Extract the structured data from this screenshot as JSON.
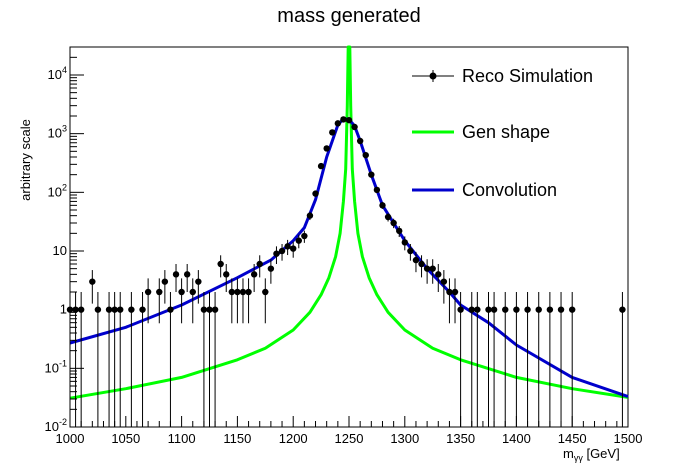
{
  "chart_data": {
    "type": "line",
    "title": "mass generated",
    "xlabel": "m_γγ [GeV]",
    "xlabel_main": "m",
    "xlabel_sub": "γγ",
    "xlabel_unit": " [GeV]",
    "ylabel": "arbitrary scale",
    "xlim": [
      1000,
      1500
    ],
    "ylim": [
      0.01,
      30000
    ],
    "y_scale": "log",
    "grid": false,
    "legend_position": "top-right",
    "x_ticks": [
      {
        "value": 1000,
        "label": "1000"
      },
      {
        "value": 1050,
        "label": "1050"
      },
      {
        "value": 1100,
        "label": "1100"
      },
      {
        "value": 1150,
        "label": "1150"
      },
      {
        "value": 1200,
        "label": "1200"
      },
      {
        "value": 1250,
        "label": "1250"
      },
      {
        "value": 1300,
        "label": "1300"
      },
      {
        "value": 1350,
        "label": "1350"
      },
      {
        "value": 1400,
        "label": "1400"
      },
      {
        "value": 1450,
        "label": "1450"
      },
      {
        "value": 1500,
        "label": "1500"
      }
    ],
    "y_ticks": [
      {
        "value": 0.01,
        "base": "10",
        "exp": "-2"
      },
      {
        "value": 0.1,
        "base": "10",
        "exp": "-1"
      },
      {
        "value": 1,
        "base": "1",
        "exp": ""
      },
      {
        "value": 10,
        "base": "10",
        "exp": ""
      },
      {
        "value": 100,
        "base": "10",
        "exp": "2"
      },
      {
        "value": 1000,
        "base": "10",
        "exp": "3"
      },
      {
        "value": 10000,
        "base": "10",
        "exp": "4"
      }
    ],
    "series": [
      {
        "name": "Reco Simulation",
        "kind": "points-with-errors",
        "color": "#000000",
        "points": [
          [
            1000,
            1
          ],
          [
            1005,
            1
          ],
          [
            1010,
            1
          ],
          [
            1020,
            3
          ],
          [
            1025,
            1
          ],
          [
            1035,
            1
          ],
          [
            1040,
            1
          ],
          [
            1045,
            1
          ],
          [
            1055,
            1
          ],
          [
            1065,
            1
          ],
          [
            1070,
            2
          ],
          [
            1080,
            2
          ],
          [
            1085,
            3
          ],
          [
            1090,
            1
          ],
          [
            1095,
            4
          ],
          [
            1100,
            2
          ],
          [
            1105,
            4
          ],
          [
            1110,
            2
          ],
          [
            1115,
            3
          ],
          [
            1120,
            1
          ],
          [
            1125,
            1
          ],
          [
            1130,
            1
          ],
          [
            1135,
            6
          ],
          [
            1140,
            4
          ],
          [
            1145,
            2
          ],
          [
            1150,
            2
          ],
          [
            1155,
            2
          ],
          [
            1160,
            2
          ],
          [
            1165,
            4
          ],
          [
            1170,
            6
          ],
          [
            1175,
            2
          ],
          [
            1180,
            5
          ],
          [
            1185,
            9
          ],
          [
            1190,
            10
          ],
          [
            1195,
            12
          ],
          [
            1200,
            11
          ],
          [
            1205,
            15
          ],
          [
            1210,
            18
          ],
          [
            1215,
            40
          ],
          [
            1220,
            95
          ],
          [
            1225,
            280
          ],
          [
            1230,
            560
          ],
          [
            1235,
            1050
          ],
          [
            1240,
            1500
          ],
          [
            1245,
            1750
          ],
          [
            1250,
            1700
          ],
          [
            1255,
            1300
          ],
          [
            1260,
            750
          ],
          [
            1265,
            430
          ],
          [
            1270,
            200
          ],
          [
            1275,
            110
          ],
          [
            1280,
            60
          ],
          [
            1285,
            38
          ],
          [
            1290,
            30
          ],
          [
            1295,
            22
          ],
          [
            1300,
            14
          ],
          [
            1305,
            10
          ],
          [
            1310,
            7
          ],
          [
            1315,
            6
          ],
          [
            1320,
            5
          ],
          [
            1325,
            5
          ],
          [
            1330,
            4
          ],
          [
            1335,
            3
          ],
          [
            1340,
            2
          ],
          [
            1345,
            2
          ],
          [
            1350,
            1
          ],
          [
            1360,
            1
          ],
          [
            1365,
            1
          ],
          [
            1375,
            1
          ],
          [
            1380,
            1
          ],
          [
            1390,
            1
          ],
          [
            1400,
            1
          ],
          [
            1410,
            1
          ],
          [
            1420,
            1
          ],
          [
            1430,
            1
          ],
          [
            1440,
            1
          ],
          [
            1450,
            1
          ],
          [
            1495,
            1
          ]
        ]
      },
      {
        "name": "Gen shape",
        "kind": "line",
        "color": "#00ff00",
        "points": [
          [
            1000,
            0.031
          ],
          [
            1050,
            0.045
          ],
          [
            1100,
            0.07
          ],
          [
            1150,
            0.14
          ],
          [
            1175,
            0.22
          ],
          [
            1200,
            0.45
          ],
          [
            1215,
            0.9
          ],
          [
            1225,
            1.8
          ],
          [
            1232,
            3.5
          ],
          [
            1238,
            8
          ],
          [
            1242,
            20
          ],
          [
            1245,
            70
          ],
          [
            1247,
            250
          ],
          [
            1248.5,
            3000
          ],
          [
            1249.3,
            40000
          ],
          [
            1250.7,
            40000
          ],
          [
            1251.5,
            3000
          ],
          [
            1253,
            250
          ],
          [
            1255,
            70
          ],
          [
            1258,
            20
          ],
          [
            1262,
            8
          ],
          [
            1268,
            3.5
          ],
          [
            1275,
            1.8
          ],
          [
            1285,
            0.9
          ],
          [
            1300,
            0.45
          ],
          [
            1325,
            0.22
          ],
          [
            1350,
            0.14
          ],
          [
            1400,
            0.07
          ],
          [
            1450,
            0.045
          ],
          [
            1500,
            0.032
          ]
        ]
      },
      {
        "name": "Convolution",
        "kind": "line",
        "color": "#0000cc",
        "points": [
          [
            1000,
            0.27
          ],
          [
            1050,
            0.5
          ],
          [
            1100,
            1.2
          ],
          [
            1150,
            3.5
          ],
          [
            1180,
            7
          ],
          [
            1200,
            15
          ],
          [
            1210,
            25
          ],
          [
            1220,
            75
          ],
          [
            1230,
            400
          ],
          [
            1240,
            1400
          ],
          [
            1245,
            1800
          ],
          [
            1250,
            1750
          ],
          [
            1255,
            1350
          ],
          [
            1260,
            750
          ],
          [
            1270,
            200
          ],
          [
            1280,
            60
          ],
          [
            1290,
            30
          ],
          [
            1300,
            15
          ],
          [
            1320,
            5
          ],
          [
            1340,
            2
          ],
          [
            1350,
            1.2
          ],
          [
            1375,
            0.6
          ],
          [
            1400,
            0.25
          ],
          [
            1450,
            0.07
          ],
          [
            1500,
            0.033
          ]
        ]
      }
    ]
  }
}
